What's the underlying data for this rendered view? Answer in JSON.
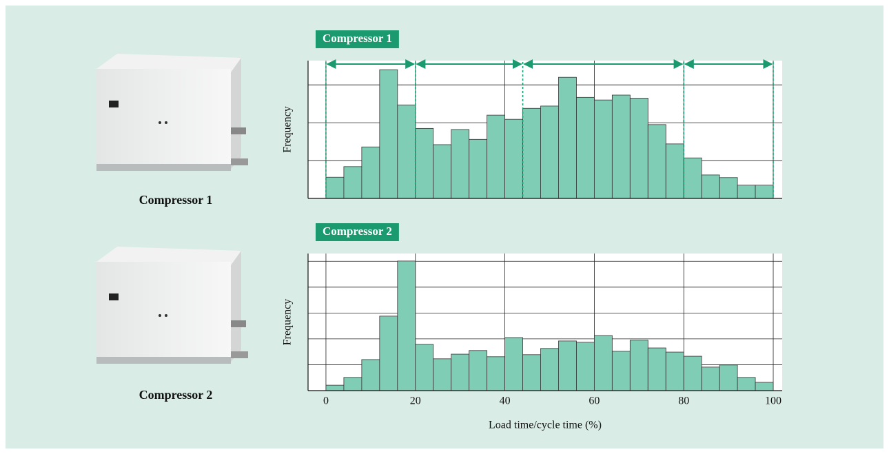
{
  "chart_data": [
    {
      "type": "histogram",
      "title": "Compressor 1",
      "caption": "Compressor 1",
      "ylabel": "Frequency",
      "bins": [
        0,
        4,
        8,
        12,
        16,
        20,
        24,
        28,
        32,
        36,
        40,
        44,
        48,
        52,
        56,
        60,
        64,
        68,
        72,
        76,
        80,
        84,
        88,
        92,
        96,
        100
      ],
      "values": [
        0.56,
        0.84,
        1.36,
        3.4,
        2.47,
        1.85,
        1.42,
        1.82,
        1.56,
        2.2,
        2.09,
        2.38,
        2.44,
        3.2,
        2.67,
        2.6,
        2.73,
        2.65,
        1.95,
        1.44,
        1.07,
        0.62,
        0.55,
        0.35,
        0.35
      ],
      "color": "#7fcdb5",
      "xlim": [
        -4,
        102
      ],
      "ylim": [
        0,
        3.64
      ],
      "yticks": [
        1,
        2,
        3
      ],
      "grid": true,
      "annotation_bounds": [
        0,
        20,
        44,
        80,
        100
      ],
      "annotation_color": "#1a9a6e"
    },
    {
      "type": "histogram",
      "title": "Compressor 2",
      "caption": "Compressor 2",
      "ylabel": "Frequency",
      "xlabel": "Load time/cycle time (%)",
      "bins": [
        0,
        4,
        8,
        12,
        16,
        20,
        24,
        28,
        32,
        36,
        40,
        44,
        48,
        52,
        56,
        60,
        64,
        68,
        72,
        76,
        80,
        84,
        88,
        92,
        96,
        100
      ],
      "values": [
        0.21,
        0.51,
        1.2,
        2.88,
        5.01,
        1.79,
        1.23,
        1.41,
        1.55,
        1.31,
        2.05,
        1.39,
        1.63,
        1.92,
        1.87,
        2.13,
        1.52,
        1.95,
        1.65,
        1.49,
        1.33,
        0.91,
        0.99,
        0.51,
        0.32
      ],
      "color": "#7fcdb5",
      "xlim": [
        -4,
        102
      ],
      "xticks": [
        0,
        20,
        40,
        60,
        80,
        100
      ],
      "ylim": [
        0,
        5.3
      ],
      "yticks": [
        1,
        2,
        3,
        4,
        5
      ],
      "grid": true
    }
  ]
}
